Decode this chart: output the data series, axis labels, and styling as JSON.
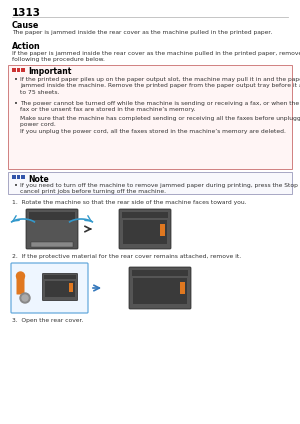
{
  "page_number": "1313",
  "cause_title": "Cause",
  "cause_text": "The paper is jammed inside the rear cover as the machine pulled in the printed paper.",
  "action_title": "Action",
  "action_text": "If the paper is jammed inside the rear cover as the machine pulled in the printed paper, remove the paper\nfollowing the procedure below.",
  "important_title": "Important",
  "imp_bul1": "If the printed paper piles up on the paper output slot, the machine may pull it in and the paper is\njammed inside the machine. Remove the printed paper from the paper output tray before it amounts\nto 75 sheets.",
  "imp_bul2a": "The power cannot be turned off while the machine is sending or receiving a fax, or when the received\nfax or the unsent fax are stored in the machine’s memory.",
  "imp_bul2b": "Make sure that the machine has completed sending or receiving all the faxes before unplugging the\npower cord.",
  "imp_bul2c": "If you unplug the power cord, all the faxes stored in the machine’s memory are deleted.",
  "note_title": "Note",
  "note_bul": "If you need to turn off the machine to remove jammed paper during printing, press the Stop button to\ncancel print jobs before turning off the machine.",
  "step1": "1.  Rotate the machine so that the rear side of the machine faces toward you.",
  "step2": "2.  If the protective material for the rear cover remains attached, remove it.",
  "step3": "3.  Open the rear cover.",
  "important_bg": "#fff5f5",
  "important_border": "#d08080",
  "note_bg": "#f8f8fc",
  "note_border": "#9999bb",
  "icon_important_color": "#cc3333",
  "icon_note_color": "#3355aa",
  "bg_color": "#ffffff",
  "text_color": "#333333",
  "title_color": "#000000",
  "printer_dark": "#3a3a3a",
  "printer_mid": "#555555",
  "printer_light": "#888888",
  "orange": "#e07820",
  "arrow_blue": "#3399cc"
}
